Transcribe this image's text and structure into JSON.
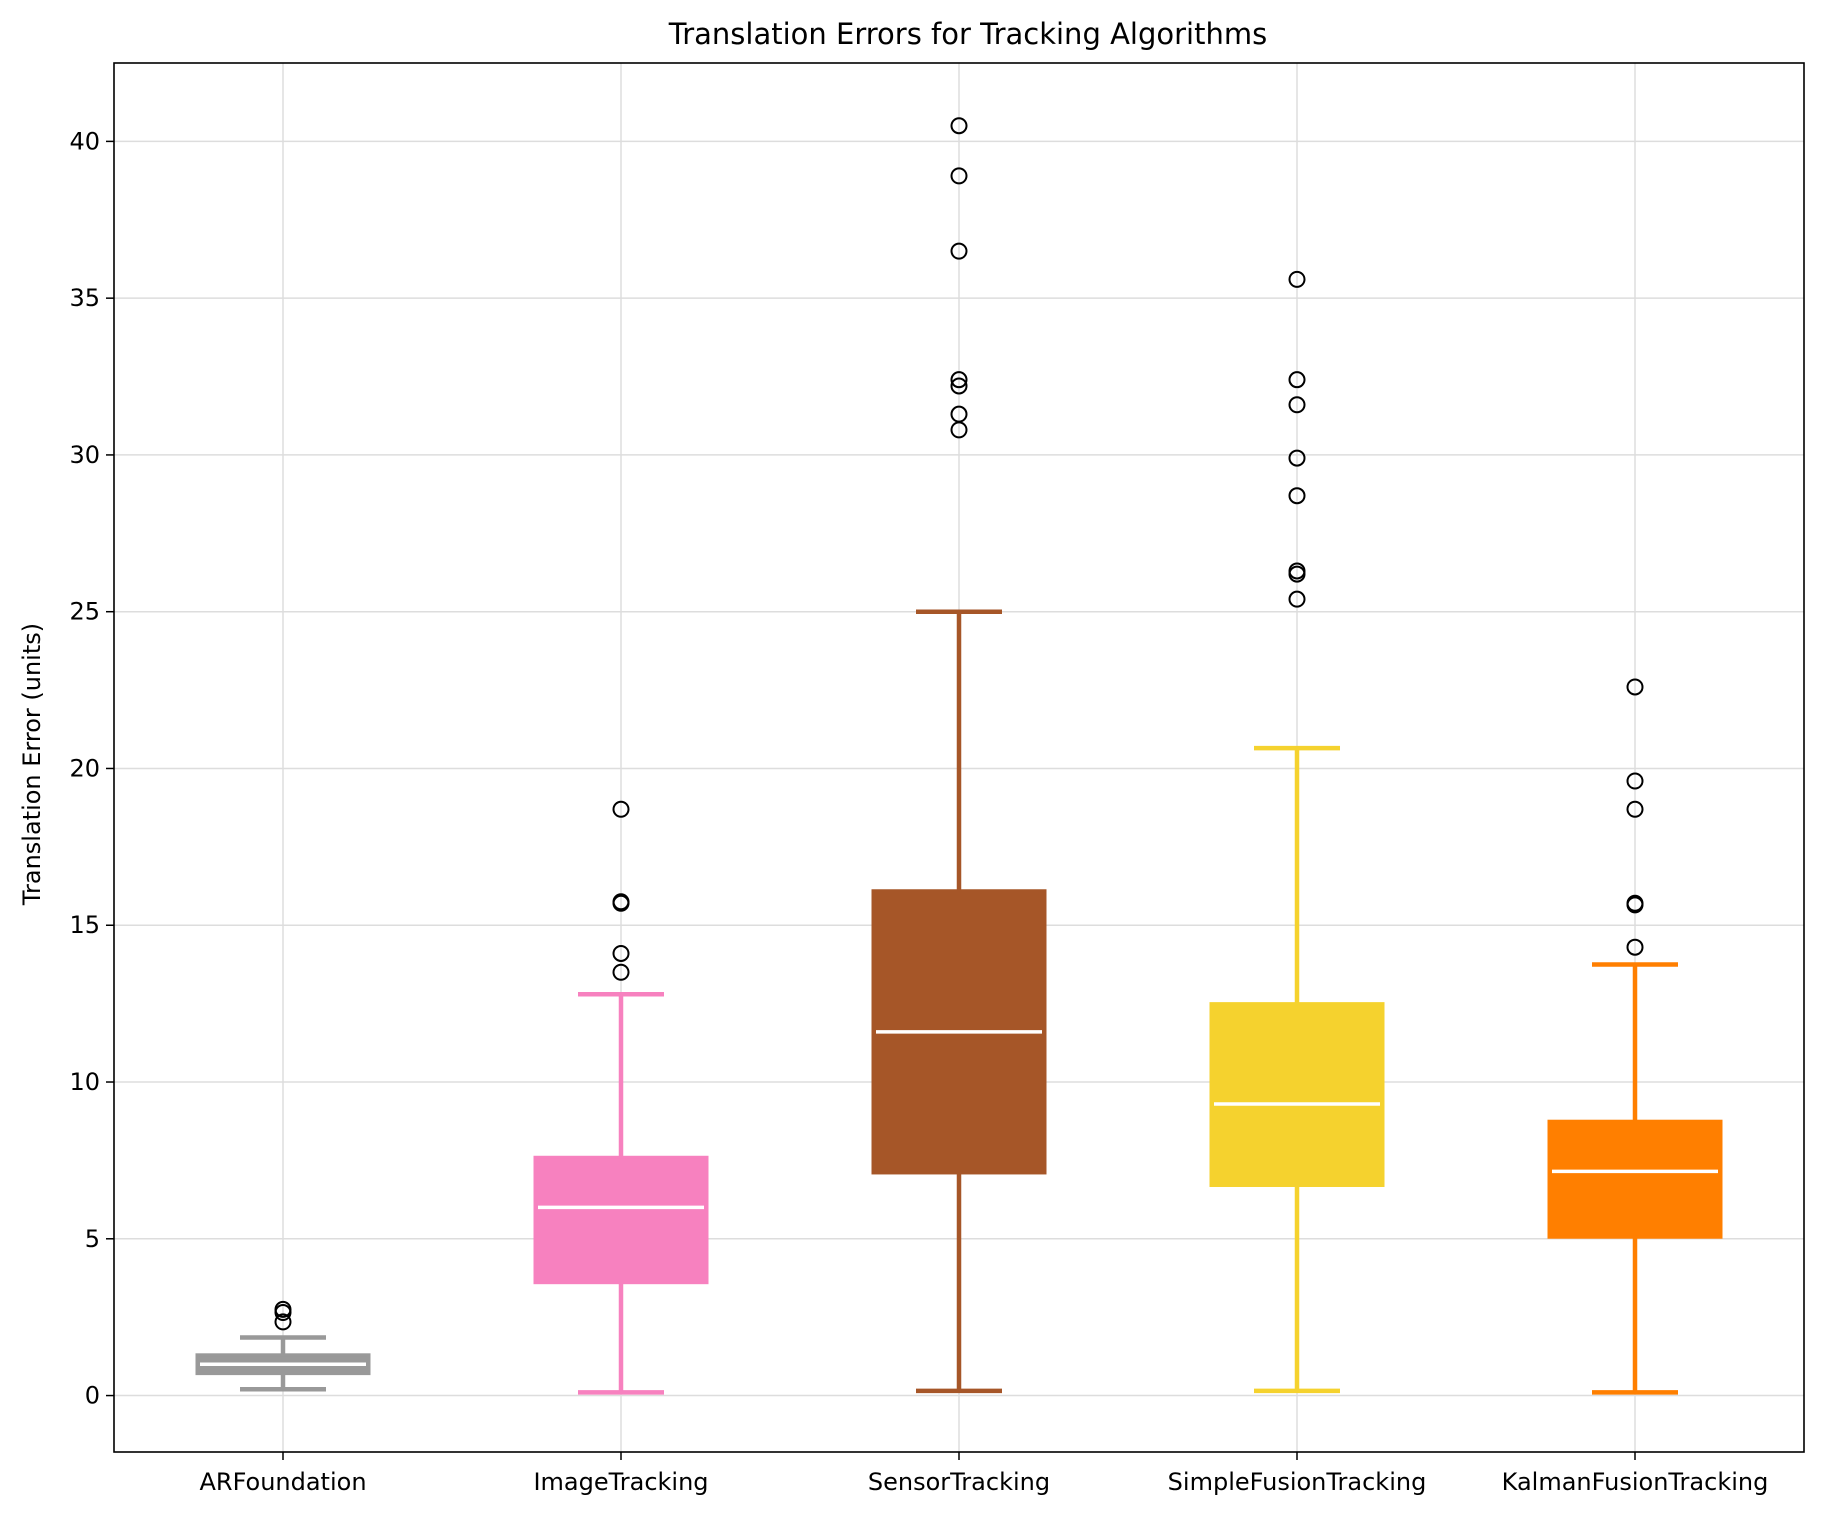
{
  "chart_data": {
    "type": "box",
    "title": "Translation Errors for Tracking Algorithms",
    "xlabel": "",
    "ylabel": "Translation Error (units)",
    "ylim": [
      -1.8,
      42.5
    ],
    "yticks": [
      0,
      5,
      10,
      15,
      20,
      25,
      30,
      35,
      40
    ],
    "grid": true,
    "categories": [
      "ARFoundation",
      "ImageTracking",
      "SensorTracking",
      "SimpleFusionTracking",
      "KalmanFusionTracking"
    ],
    "series": [
      {
        "color": "#999999",
        "whisker_low": 0.2,
        "q1": 0.7,
        "median": 1.0,
        "q3": 1.3,
        "whisker_high": 1.85,
        "outliers": [
          2.35,
          2.65,
          2.75
        ]
      },
      {
        "color": "#f781bf",
        "whisker_low": 0.1,
        "q1": 3.6,
        "median": 6.0,
        "q3": 7.6,
        "whisker_high": 12.8,
        "outliers": [
          13.5,
          14.1,
          15.7,
          15.75,
          18.7
        ]
      },
      {
        "color": "#a65628",
        "whisker_low": 0.15,
        "q1": 7.1,
        "median": 11.6,
        "q3": 16.1,
        "whisker_high": 25.0,
        "outliers": [
          30.8,
          31.3,
          32.2,
          32.4,
          36.5,
          38.9,
          40.5
        ]
      },
      {
        "color": "#f5d22e",
        "whisker_low": 0.15,
        "q1": 6.7,
        "median": 9.3,
        "q3": 12.5,
        "whisker_high": 20.65,
        "outliers": [
          25.4,
          26.2,
          26.3,
          28.7,
          29.9,
          31.6,
          32.4,
          35.6
        ]
      },
      {
        "color": "#ff7f00",
        "whisker_low": 0.1,
        "q1": 5.05,
        "median": 7.15,
        "q3": 8.75,
        "whisker_high": 13.75,
        "outliers": [
          14.3,
          15.65,
          15.7,
          18.7,
          19.6,
          22.6
        ]
      }
    ]
  }
}
